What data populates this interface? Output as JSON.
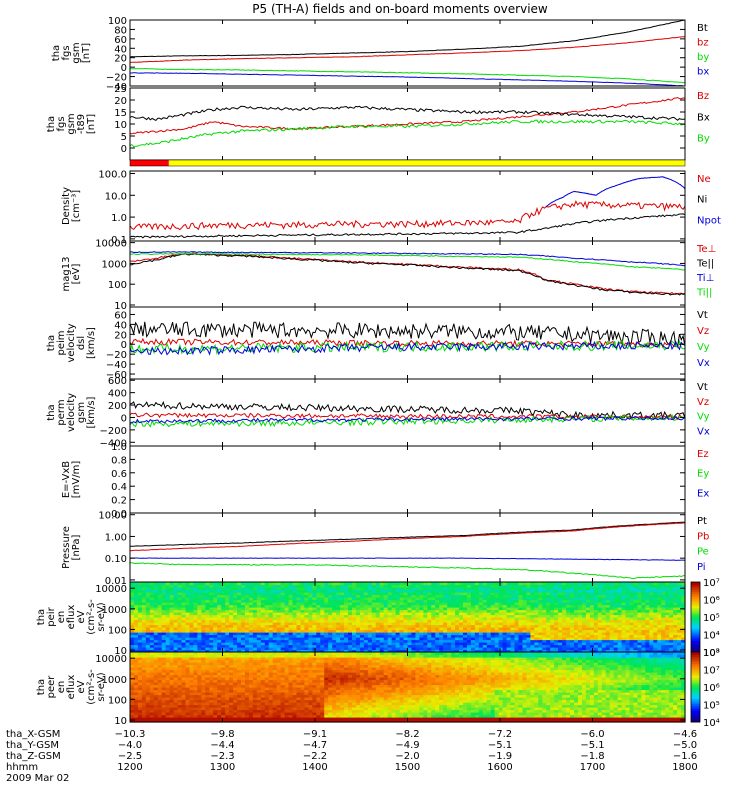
{
  "title": "P5 (TH-A) fields and on-board moments overview",
  "palette": {
    "black": "#000000",
    "red": "#dd0000",
    "green": "#00dd00",
    "blue": "#0000dd",
    "yellow_bar": "#ffff00",
    "red_bar": "#ff0000"
  },
  "chart_data": [
    {
      "type": "line",
      "id": "fgs_gsm",
      "ylabel": [
        "tha",
        "fgs",
        "gsm",
        "[nT]"
      ],
      "ylim": [
        -40,
        100
      ],
      "yticks": [
        -40,
        -20,
        0,
        20,
        40,
        60,
        80,
        100
      ],
      "ytick_labels": [
        "−40",
        "−20",
        "0",
        "20",
        "40",
        "60",
        "80",
        "100"
      ],
      "series": [
        {
          "name": "Bt",
          "color": "black",
          "noise": 0.4,
          "x": [
            0,
            0.1,
            0.2,
            0.3,
            0.4,
            0.5,
            0.6,
            0.7,
            0.8,
            0.9,
            1
          ],
          "y": [
            22,
            24,
            25,
            27,
            30,
            33,
            38,
            44,
            56,
            75,
            100
          ]
        },
        {
          "name": "bz",
          "color": "red",
          "noise": 0.4,
          "x": [
            0,
            0.1,
            0.2,
            0.3,
            0.4,
            0.5,
            0.6,
            0.7,
            0.8,
            0.9,
            1
          ],
          "y": [
            10,
            15,
            18,
            20,
            22,
            26,
            30,
            35,
            42,
            52,
            65
          ]
        },
        {
          "name": "by",
          "color": "green",
          "noise": 0.6,
          "x": [
            0,
            0.1,
            0.2,
            0.3,
            0.4,
            0.5,
            0.6,
            0.7,
            0.8,
            0.9,
            1
          ],
          "y": [
            -3,
            -5,
            -6,
            -8,
            -10,
            -12,
            -14,
            -17,
            -20,
            -25,
            -33
          ]
        },
        {
          "name": "bx",
          "color": "blue",
          "noise": 0.4,
          "x": [
            0,
            0.1,
            0.2,
            0.3,
            0.4,
            0.5,
            0.6,
            0.7,
            0.8,
            0.9,
            1
          ],
          "y": [
            -12,
            -13,
            -15,
            -17,
            -19,
            -21,
            -24,
            -27,
            -30,
            -34,
            -40
          ]
        }
      ]
    },
    {
      "type": "line",
      "id": "fgs_t89",
      "ylabel": [
        "tha",
        "fgs",
        "gsm",
        "-t89",
        "[nT]"
      ],
      "ylim": [
        -5,
        25
      ],
      "yticks": [
        0,
        5,
        10,
        15,
        20,
        25
      ],
      "ytick_labels": [
        "0",
        "5",
        "10",
        "15",
        "20",
        "25"
      ],
      "series": [
        {
          "name": "Bz",
          "color": "red",
          "noise": 0.4,
          "x": [
            0,
            0.05,
            0.1,
            0.15,
            0.2,
            0.3,
            0.4,
            0.5,
            0.6,
            0.7,
            0.8,
            0.9,
            1
          ],
          "y": [
            6,
            7,
            8,
            11,
            9,
            8,
            9,
            10,
            11,
            13,
            15,
            18,
            21
          ]
        },
        {
          "name": "Bx",
          "color": "black",
          "noise": 0.6,
          "x": [
            0,
            0.05,
            0.1,
            0.15,
            0.2,
            0.3,
            0.4,
            0.5,
            0.6,
            0.7,
            0.8,
            0.9,
            1
          ],
          "y": [
            13,
            12,
            14,
            16,
            17,
            16,
            17,
            16,
            15,
            15,
            14,
            13,
            12
          ]
        },
        {
          "name": "By",
          "color": "green",
          "noise": 0.6,
          "x": [
            0,
            0.05,
            0.1,
            0.15,
            0.2,
            0.3,
            0.4,
            0.5,
            0.6,
            0.7,
            0.8,
            0.9,
            1
          ],
          "y": [
            1,
            2,
            4,
            6,
            7,
            8,
            9,
            9,
            10,
            11,
            11,
            11,
            10
          ]
        }
      ]
    },
    {
      "type": "line",
      "id": "density",
      "scale": "log",
      "ylabel": [
        "Density",
        "[cm⁻³]"
      ],
      "ylim": [
        0.08,
        130
      ],
      "yticks": [
        0.1,
        1,
        10,
        100
      ],
      "ytick_labels": [
        "0.1",
        "1.0",
        "10.0",
        "100.0"
      ],
      "series": [
        {
          "name": "Ne",
          "color": "red",
          "noise": 0.35,
          "x": [
            0,
            0.1,
            0.2,
            0.3,
            0.4,
            0.5,
            0.6,
            0.7,
            0.75,
            0.8,
            0.9,
            1
          ],
          "y": [
            0.35,
            0.4,
            0.45,
            0.45,
            0.5,
            0.5,
            0.55,
            0.6,
            2.5,
            4,
            3.5,
            3
          ]
        },
        {
          "name": "Ni",
          "color": "black",
          "noise": 0.1,
          "x": [
            0,
            0.1,
            0.2,
            0.3,
            0.4,
            0.5,
            0.6,
            0.7,
            0.75,
            0.8,
            0.9,
            1
          ],
          "y": [
            0.12,
            0.13,
            0.14,
            0.15,
            0.16,
            0.17,
            0.18,
            0.2,
            0.3,
            0.5,
            0.9,
            1.3
          ]
        },
        {
          "name": "Npot",
          "color": "blue",
          "noise": 0.02,
          "x": [
            0.75,
            0.78,
            0.8,
            0.84,
            0.88,
            0.92,
            0.96,
            1
          ],
          "y": [
            3,
            8,
            15,
            10,
            30,
            60,
            70,
            20
          ]
        }
      ]
    },
    {
      "type": "line",
      "id": "temperature",
      "scale": "log",
      "ylabel": [
        "mag13",
        "[eV]"
      ],
      "ylim": [
        8,
        12000
      ],
      "yticks": [
        10,
        100,
        1000,
        10000
      ],
      "ytick_labels": [
        "10",
        "100",
        "1000",
        "10000"
      ],
      "series": [
        {
          "name": "Te⊥",
          "color": "red",
          "noise": 0.1,
          "x": [
            0,
            0.05,
            0.1,
            0.2,
            0.3,
            0.4,
            0.5,
            0.6,
            0.7,
            0.75,
            0.8,
            0.85,
            0.9,
            0.95,
            1
          ],
          "y": [
            1200,
            1800,
            3000,
            2500,
            1700,
            1200,
            900,
            650,
            500,
            160,
            100,
            60,
            45,
            38,
            35
          ]
        },
        {
          "name": "Te||",
          "color": "black",
          "noise": 0.1,
          "x": [
            0,
            0.05,
            0.1,
            0.2,
            0.3,
            0.4,
            0.5,
            0.6,
            0.7,
            0.75,
            0.8,
            0.85,
            0.9,
            0.95,
            1
          ],
          "y": [
            900,
            1500,
            2800,
            2300,
            1600,
            1100,
            850,
            600,
            450,
            150,
            90,
            55,
            42,
            35,
            32
          ]
        },
        {
          "name": "Ti⊥",
          "color": "blue",
          "noise": 0.05,
          "x": [
            0,
            0.1,
            0.2,
            0.3,
            0.4,
            0.5,
            0.6,
            0.7,
            0.8,
            0.9,
            1
          ],
          "y": [
            3500,
            3500,
            3400,
            3300,
            3200,
            3000,
            2900,
            2700,
            1800,
            1200,
            800
          ]
        },
        {
          "name": "Ti||",
          "color": "green",
          "noise": 0.05,
          "x": [
            0,
            0.1,
            0.2,
            0.3,
            0.4,
            0.5,
            0.6,
            0.7,
            0.8,
            0.9,
            1
          ],
          "y": [
            2800,
            2900,
            2800,
            2700,
            2600,
            2400,
            2200,
            2000,
            1200,
            700,
            500
          ]
        }
      ]
    },
    {
      "type": "line",
      "id": "peim_velocity",
      "ylabel": [
        "tha",
        "peim",
        "velocity",
        "dsl",
        "[km/s]"
      ],
      "ylim": [
        -70,
        75
      ],
      "yticks": [
        -60,
        -40,
        -20,
        0,
        20,
        40,
        60
      ],
      "ytick_labels": [
        "−60",
        "−40",
        "−20",
        "0",
        "20",
        "40",
        "60"
      ],
      "series": [
        {
          "name": "Vt",
          "color": "black",
          "noise": 16,
          "x": [
            0,
            0.3,
            0.6,
            0.8,
            1
          ],
          "y": [
            30,
            28,
            26,
            20,
            10
          ]
        },
        {
          "name": "Vz",
          "color": "red",
          "noise": 6,
          "x": [
            0,
            0.5,
            1
          ],
          "y": [
            5,
            2,
            0
          ]
        },
        {
          "name": "Vy",
          "color": "green",
          "noise": 10,
          "x": [
            0,
            0.5,
            1
          ],
          "y": [
            -10,
            -5,
            -2
          ]
        },
        {
          "name": "Vx",
          "color": "blue",
          "noise": 8,
          "x": [
            0,
            0.5,
            1
          ],
          "y": [
            -15,
            -6,
            -3
          ]
        }
      ]
    },
    {
      "type": "line",
      "id": "perm_velocity",
      "ylabel": [
        "tha",
        "perm",
        "velocity",
        "gsm",
        "[km/s]"
      ],
      "ylim": [
        -460,
        620
      ],
      "yticks": [
        -400,
        -200,
        0,
        200,
        400,
        600
      ],
      "ytick_labels": [
        "−400",
        "−200",
        "0",
        "200",
        "400",
        "600"
      ],
      "series": [
        {
          "name": "Vt",
          "color": "black",
          "noise": 55,
          "x": [
            0,
            0.3,
            0.6,
            0.7,
            0.8,
            1
          ],
          "y": [
            200,
            160,
            120,
            110,
            40,
            30
          ]
        },
        {
          "name": "Vz",
          "color": "red",
          "noise": 35,
          "x": [
            0,
            0.5,
            1
          ],
          "y": [
            40,
            20,
            5
          ]
        },
        {
          "name": "Vy",
          "color": "green",
          "noise": 50,
          "x": [
            0,
            0.3,
            0.6,
            0.8,
            1
          ],
          "y": [
            -100,
            -90,
            -50,
            -20,
            -5
          ]
        },
        {
          "name": "Vx",
          "color": "blue",
          "noise": 30,
          "x": [
            0,
            0.5,
            1
          ],
          "y": [
            -60,
            -30,
            -10
          ]
        }
      ]
    },
    {
      "type": "line",
      "id": "e_vxb",
      "ylabel": [
        "E=-VxB",
        "[mV/m]"
      ],
      "ylim": [
        0,
        1
      ],
      "yticks": [
        0,
        0.2,
        0.4,
        0.6,
        0.8,
        1.0
      ],
      "ytick_labels": [
        "0.0",
        "0.2",
        "0.4",
        "0.6",
        "0.8",
        "1.0"
      ],
      "series": [
        {
          "name": "Ez",
          "color": "red",
          "x": [],
          "y": []
        },
        {
          "name": "Ey",
          "color": "green",
          "x": [],
          "y": []
        },
        {
          "name": "Ex",
          "color": "blue",
          "x": [],
          "y": []
        }
      ]
    },
    {
      "type": "line",
      "id": "pressure",
      "scale": "log",
      "ylabel": [
        "Pressure",
        "[nPa]"
      ],
      "ylim": [
        0.008,
        12
      ],
      "yticks": [
        0.01,
        0.1,
        1,
        10
      ],
      "ytick_labels": [
        "0.01",
        "0.10",
        "1.00",
        "10.00"
      ],
      "series": [
        {
          "name": "Pt",
          "color": "black",
          "noise": 0.02,
          "x": [
            0,
            0.2,
            0.4,
            0.6,
            0.8,
            1
          ],
          "y": [
            0.35,
            0.5,
            0.75,
            1.1,
            2,
            4.5
          ]
        },
        {
          "name": "Pb",
          "color": "red",
          "noise": 0.02,
          "x": [
            0,
            0.2,
            0.4,
            0.6,
            0.8,
            1
          ],
          "y": [
            0.22,
            0.35,
            0.6,
            1,
            1.8,
            4.2
          ]
        },
        {
          "name": "Pe",
          "color": "green",
          "noise": 0.05,
          "x": [
            0,
            0.1,
            0.3,
            0.5,
            0.7,
            0.8,
            0.9,
            1
          ],
          "y": [
            0.06,
            0.05,
            0.05,
            0.04,
            0.03,
            0.02,
            0.012,
            0.015
          ]
        },
        {
          "name": "Pi",
          "color": "blue",
          "noise": 0.02,
          "x": [
            0,
            0.2,
            0.4,
            0.6,
            0.8,
            1
          ],
          "y": [
            0.1,
            0.1,
            0.1,
            0.1,
            0.09,
            0.08
          ]
        }
      ]
    },
    {
      "type": "heatmap",
      "id": "peir",
      "ylabel": [
        "tha",
        "peir",
        "en",
        "eflux",
        "eV",
        "(cm²-s-",
        "sr-eV)"
      ],
      "ylim": [
        8,
        20000
      ],
      "yticks": [
        10,
        100,
        1000,
        10000
      ],
      "ytick_labels": [
        "10",
        "100",
        "1000",
        "10000"
      ],
      "colorbar": {
        "range": [
          3,
          7
        ],
        "labels": [
          "10³",
          "10⁴",
          "10⁵",
          "10⁶",
          "10⁷"
        ]
      }
    },
    {
      "type": "heatmap",
      "id": "peer",
      "ylabel": [
        "tha",
        "peer",
        "en",
        "eflux",
        "eV",
        "(cm²-s-",
        "sr-eV)"
      ],
      "ylim": [
        8,
        20000
      ],
      "yticks": [
        10,
        100,
        1000,
        10000
      ],
      "ytick_labels": [
        "10",
        "100",
        "1000",
        "10000"
      ],
      "colorbar": {
        "range": [
          4,
          8
        ],
        "labels": [
          "10⁴",
          "10⁵",
          "10⁶",
          "10⁷",
          "10⁸"
        ]
      }
    }
  ],
  "flag_bar": {
    "red_end": 0.07
  },
  "bottom_axis": {
    "rows": [
      {
        "label": "tha_X-GSM",
        "values": [
          "−10.3",
          "−9.8",
          "−9.1",
          "−8.2",
          "−7.2",
          "−6.0",
          "−4.6"
        ]
      },
      {
        "label": "tha_Y-GSM",
        "values": [
          "−4.0",
          "−4.4",
          "−4.7",
          "−4.9",
          "−5.1",
          "−5.1",
          "−5.0"
        ]
      },
      {
        "label": "tha_Z-GSM",
        "values": [
          "−2.5",
          "−2.3",
          "−2.2",
          "−2.0",
          "−1.9",
          "−1.8",
          "−1.6"
        ]
      },
      {
        "label": "hhmm",
        "values": [
          "1200",
          "1300",
          "1400",
          "1500",
          "1600",
          "1700",
          "1800"
        ]
      }
    ],
    "date": "2009 Mar 02"
  }
}
